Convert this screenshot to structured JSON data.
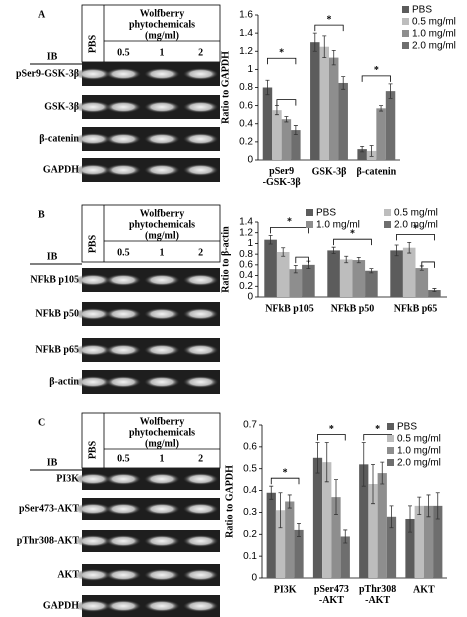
{
  "figure": {
    "panels": [
      {
        "letter": "A",
        "ib": "IB",
        "control": "PBS",
        "treatment": [
          "Wolfberry",
          "phytochemicals",
          "(mg/ml)"
        ],
        "doses": [
          "0.5",
          "1",
          "2"
        ],
        "rows": [
          "pSer9-GSK-3β",
          "GSK-3β",
          "β-catenin",
          "GAPDH"
        ]
      },
      {
        "letter": "B",
        "ib": "IB",
        "control": "PBS",
        "treatment": [
          "Wolfberry",
          "phytochemicals",
          "(mg/ml)"
        ],
        "doses": [
          "0.5",
          "1",
          "2"
        ],
        "rows": [
          "NFkB p105",
          "NFkB p50",
          "NFkB p65",
          "β-actin"
        ]
      },
      {
        "letter": "C",
        "ib": "IB",
        "control": "PBS",
        "treatment": [
          "Wolfberry",
          "phytochemicals",
          "(mg/ml)"
        ],
        "doses": [
          "0.5",
          "1",
          "2"
        ],
        "rows": [
          "PI3K",
          "pSer473-AKT",
          "pThr308-AKT",
          "AKT",
          "GAPDH"
        ]
      }
    ]
  },
  "chart_data": [
    {
      "type": "bar",
      "y_label": "Ratio to GAPDH",
      "categories": [
        "pSer9\n-GSK-3β",
        "GSK-3β",
        "β-catenin"
      ],
      "series": [
        {
          "name": "PBS",
          "color": "#5c5c5c",
          "values": [
            0.8,
            1.3,
            0.12
          ],
          "errors": [
            0.08,
            0.1,
            0.03
          ]
        },
        {
          "name": "0.5 mg/ml",
          "color": "#bdbdbd",
          "values": [
            0.55,
            1.25,
            0.1
          ],
          "errors": [
            0.05,
            0.12,
            0.06
          ]
        },
        {
          "name": "1.0 mg/ml",
          "color": "#8e8e8e",
          "values": [
            0.45,
            1.13,
            0.57
          ],
          "errors": [
            0.03,
            0.08,
            0.03
          ]
        },
        {
          "name": "2.0 mg/ml",
          "color": "#6e6e6e",
          "values": [
            0.33,
            0.85,
            0.76
          ],
          "errors": [
            0.05,
            0.07,
            0.08
          ]
        }
      ],
      "ylim": [
        0,
        1.6
      ],
      "yticks": [
        0,
        0.2,
        0.4,
        0.6,
        0.8,
        1,
        1.2,
        1.4,
        1.6
      ],
      "legend": "right",
      "annotations": [
        "*",
        "*",
        "*"
      ]
    },
    {
      "type": "bar",
      "y_label": "Ratio to β-actin",
      "categories": [
        "NFkB p105",
        "NFkB p50",
        "NFkB p65"
      ],
      "series": [
        {
          "name": "PBS",
          "color": "#5c5c5c",
          "values": [
            1.07,
            0.87,
            0.87
          ],
          "errors": [
            0.08,
            0.06,
            0.1
          ]
        },
        {
          "name": "0.5 mg/ml",
          "color": "#bdbdbd",
          "values": [
            0.84,
            0.7,
            0.92
          ],
          "errors": [
            0.08,
            0.06,
            0.1
          ]
        },
        {
          "name": "1.0 mg/ml",
          "color": "#8e8e8e",
          "values": [
            0.52,
            0.69,
            0.54
          ],
          "errors": [
            0.07,
            0.05,
            0.04
          ]
        },
        {
          "name": "2.0 mg/ml",
          "color": "#6e6e6e",
          "values": [
            0.6,
            0.49,
            0.13
          ],
          "errors": [
            0.07,
            0.04,
            0.03
          ]
        }
      ],
      "ylim": [
        0,
        1.4
      ],
      "yticks": [
        0,
        0.2,
        0.4,
        0.6,
        0.8,
        1,
        1.2,
        1.4
      ],
      "legend": "top",
      "annotations": [
        "*",
        "*",
        "*"
      ]
    },
    {
      "type": "bar",
      "y_label": "Ratio to GAPDH",
      "categories": [
        "PI3K",
        "pSer473\n-AKT",
        "pThr308\n-AKT",
        "AKT"
      ],
      "series": [
        {
          "name": "PBS",
          "color": "#5c5c5c",
          "values": [
            0.39,
            0.55,
            0.52,
            0.27
          ],
          "errors": [
            0.03,
            0.07,
            0.1,
            0.06
          ]
        },
        {
          "name": "0.5 mg/ml",
          "color": "#bdbdbd",
          "values": [
            0.31,
            0.53,
            0.43,
            0.33
          ],
          "errors": [
            0.08,
            0.09,
            0.09,
            0.04
          ]
        },
        {
          "name": "1.0 mg/ml",
          "color": "#8e8e8e",
          "values": [
            0.35,
            0.37,
            0.48,
            0.33
          ],
          "errors": [
            0.03,
            0.08,
            0.05,
            0.05
          ]
        },
        {
          "name": "2.0 mg/ml",
          "color": "#6e6e6e",
          "values": [
            0.22,
            0.19,
            0.28,
            0.33
          ],
          "errors": [
            0.03,
            0.03,
            0.05,
            0.06
          ]
        }
      ],
      "ylim": [
        0,
        0.7
      ],
      "yticks": [
        0,
        0.1,
        0.2,
        0.3,
        0.4,
        0.5,
        0.6,
        0.7
      ],
      "legend": "upper right",
      "annotations": [
        "*",
        "*",
        "*"
      ]
    }
  ]
}
